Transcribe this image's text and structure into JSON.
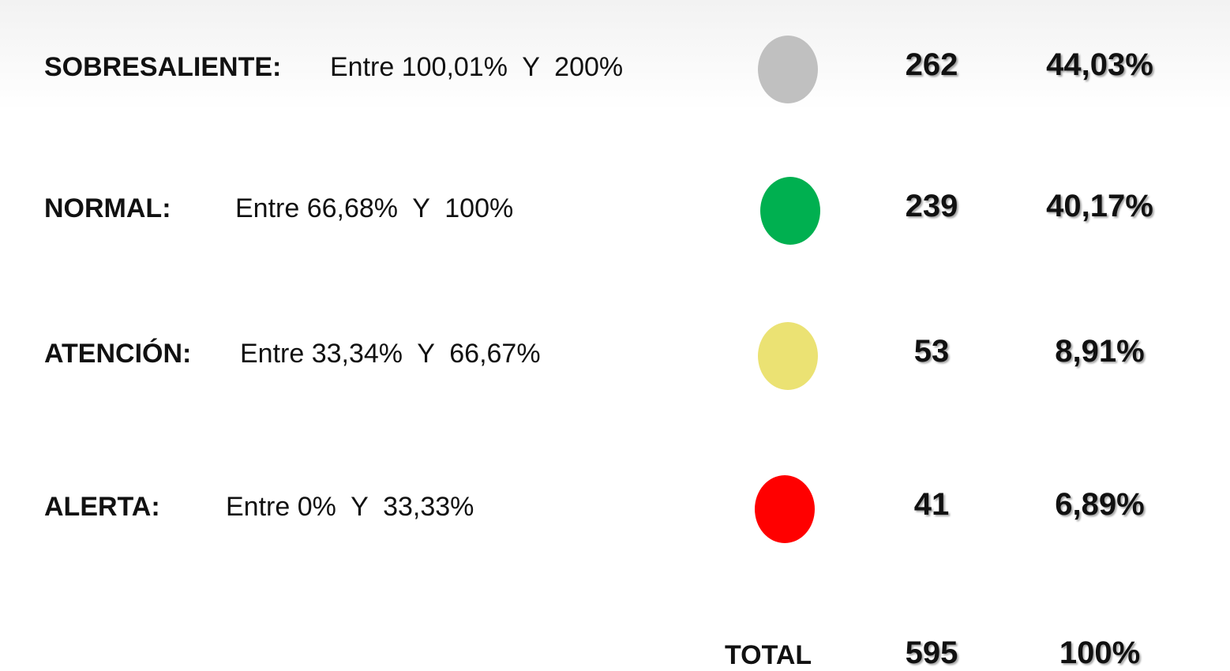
{
  "rows": [
    {
      "label": "SOBRESALIENTE:",
      "range": "Entre 100,01%  Y  200%",
      "color": "#c0c0c0",
      "count": "262",
      "percent": "44,03%"
    },
    {
      "label": "NORMAL:",
      "range": "Entre 66,68%  Y  100%",
      "color": "#00b050",
      "count": "239",
      "percent": "40,17%"
    },
    {
      "label": "ATENCIÓN:",
      "range": "Entre 33,34%  Y  66,67%",
      "color": "#ebe273",
      "count": "53",
      "percent": "8,91%"
    },
    {
      "label": "ALERTA:",
      "range": "Entre 0%  Y  33,33%",
      "color": "#ff0000",
      "count": "41",
      "percent": "6,89%"
    }
  ],
  "total": {
    "label": "TOTAL",
    "count": "595",
    "percent": "100%"
  }
}
